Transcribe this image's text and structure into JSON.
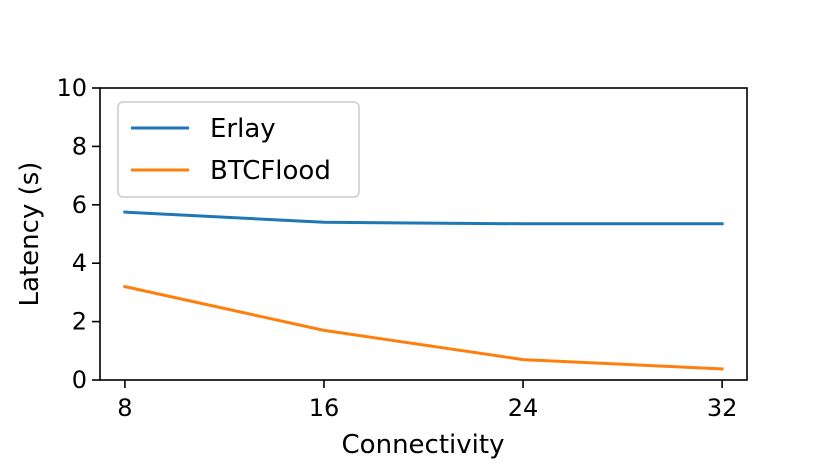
{
  "chart_data": {
    "type": "line",
    "x": [
      8,
      16,
      24,
      32
    ],
    "series": [
      {
        "name": "Erlay",
        "color": "#1f77b4",
        "values": [
          5.75,
          5.4,
          5.35,
          5.35
        ]
      },
      {
        "name": "BTCFlood",
        "color": "#ff7f0e",
        "values": [
          3.2,
          1.7,
          0.7,
          0.38
        ]
      }
    ],
    "xlabel": "Connectivity",
    "ylabel": "Latency (s)",
    "xlim": [
      7,
      33
    ],
    "ylim": [
      0,
      10
    ],
    "xticks": [
      8,
      16,
      24,
      32
    ],
    "yticks": [
      0,
      2,
      4,
      6,
      8,
      10
    ],
    "legend_position": "upper-left",
    "grid": false
  }
}
